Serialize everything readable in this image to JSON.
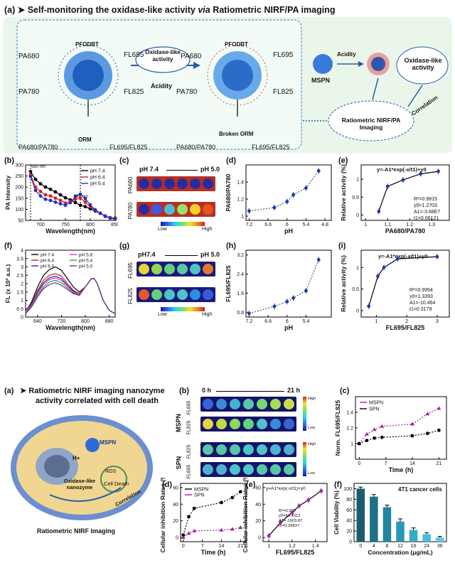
{
  "top": {
    "title_prefix": "(a) ➤ Self-monitoring the oxidase-like activity ",
    "title_italic": "via",
    "title_suffix": " Ratiometric NIRF/PA imaging",
    "scheme": {
      "pa680": "PA680",
      "pa780": "PA780",
      "fl695": "FL695",
      "fl825": "FL825",
      "pfodbt": "PFODBT",
      "oxidase_like": "Oxidase-like activity",
      "acidity": "Acidity",
      "orm": "ORM",
      "broken_orm": "Broken ORM",
      "ratio_left_pa": "PA680/PA780",
      "ratio_left_fl": "FL695/FL825",
      "ratio_mid_pa": "PA680/PA780",
      "ratio_mid_fl": "FL695/FL825",
      "mspn": "MSPN",
      "acidity2": "Acidity",
      "oxidase_like2": "Oxidase-like activity",
      "correlation": "Correlation",
      "imaging": "Ratiometric NIRF/PA Imaging"
    },
    "b": {
      "label": "(b)",
      "annot_680": "680 nm",
      "annot_780": "780 nm",
      "legend": [
        "pH 7.4",
        "pH 6.4",
        "pH 5.4"
      ]
    },
    "c": {
      "label": "(c)",
      "ph_left": "pH 7.4",
      "ph_right": "pH 5.0",
      "row1": "PA680",
      "row2": "PA780",
      "low": "Low",
      "high": "High"
    },
    "d": {
      "label": "(d)"
    },
    "e": {
      "label": "(e)",
      "equation": "y=-A1*exp(-x/t1)+y0",
      "stats": [
        "R²=0.9815",
        "y0=1.2703",
        "A1=-3.68E7",
        "t1=0.06121"
      ]
    },
    "f": {
      "label": "(f)",
      "legend": [
        "pH 7.4",
        "pH 6.4",
        "pH 6.0",
        "pH 5.8",
        "pH 5.4",
        "pH 5.0"
      ]
    },
    "g": {
      "label": "(g)",
      "ph_left": "pH7.4",
      "ph_right": "pH 5.0",
      "row1": "FL695",
      "row2": "FL825",
      "low": "Low",
      "high": "High"
    },
    "h": {
      "label": "(h)"
    },
    "i": {
      "label": "(i)",
      "equation": "y=-A1*exp(-x/t1)+y0",
      "stats": [
        "R²=0.9954",
        "y0=1.3393",
        "A1=-10.464",
        "t1=0.3179"
      ]
    }
  },
  "bottom": {
    "a": {
      "label": "(a)",
      "title1": "➤ Ratiometric NIRF imaging nanozyme",
      "title2": "activity correlated with cell death",
      "mspn": "MSPN",
      "hplus": "H+",
      "ros": "ROS",
      "oxidase": "Oxidase-like nanozyme",
      "cell_death": "Cell Death",
      "correlation": "Correlation",
      "caption": "Ratiometric NIRF Imaging"
    },
    "b": {
      "label": "(b)",
      "t0": "0 h",
      "t21": "21 h",
      "mspn": "MSPN",
      "spn": "SPN",
      "fl695": "FL695",
      "fl825": "FL825",
      "high": "High",
      "low": "Low"
    },
    "c": {
      "label": "(c)"
    },
    "d": {
      "label": "(d)"
    },
    "e": {
      "label": "(e)",
      "equation": "y=A1*exp(-x/t1)+y0",
      "stats": [
        "R²=0.979",
        "y0=83.4312",
        "A1=-1603.87",
        "t1=0.39837"
      ]
    },
    "f": {
      "label": "(f)",
      "annotation": "4T1 cancer cells"
    }
  },
  "chart_data": [
    {
      "id": "top-b",
      "type": "line",
      "xlabel": "Wavelength(nm)",
      "ylabel": "PA Intensity",
      "xlim": [
        670,
        850
      ],
      "ylim": [
        50,
        300
      ],
      "xticks": [
        700,
        750,
        800,
        850
      ],
      "yticks": [
        50,
        100,
        150,
        200,
        250,
        300
      ],
      "x": [
        680,
        690,
        700,
        710,
        720,
        730,
        740,
        750,
        760,
        770,
        780,
        790,
        800,
        810,
        820,
        830,
        840,
        850
      ],
      "series": [
        {
          "name": "pH 7.4",
          "values": [
            270,
            235,
            215,
            200,
            190,
            178,
            165,
            152,
            142,
            130,
            118,
            112,
            102,
            92,
            82,
            70,
            62,
            60
          ]
        },
        {
          "name": "pH 6.4",
          "values": [
            255,
            200,
            180,
            165,
            160,
            150,
            140,
            128,
            135,
            145,
            150,
            132,
            112,
            95,
            82,
            70,
            62,
            58
          ]
        },
        {
          "name": "pH 5.4",
          "values": [
            248,
            185,
            160,
            145,
            140,
            132,
            125,
            118,
            130,
            158,
            168,
            148,
            120,
            98,
            82,
            68,
            60,
            55
          ]
        }
      ]
    },
    {
      "id": "top-d",
      "type": "scatter",
      "xlabel": "pH",
      "ylabel": "PA680/PA780",
      "xlim": [
        7.3,
        4.6
      ],
      "ylim": [
        0.95,
        1.6
      ],
      "xticks": [
        7.2,
        6.6,
        6.0,
        5.4,
        4.8
      ],
      "yticks": [
        1.0,
        1.2,
        1.4
      ],
      "x": [
        7.2,
        6.4,
        6.0,
        5.8,
        5.4,
        5.0
      ],
      "values": [
        1.06,
        1.1,
        1.17,
        1.25,
        1.33,
        1.53
      ]
    },
    {
      "id": "top-e",
      "type": "scatter",
      "xlabel": "PA680/PA780",
      "ylabel": "Relative activity (%)",
      "xlim": [
        0.98,
        1.38
      ],
      "ylim": [
        -0.15,
        1.4
      ],
      "xticks": [
        1.0,
        1.1,
        1.2,
        1.3
      ],
      "yticks": [
        0.0,
        0.5,
        1.0
      ],
      "x": [
        1.06,
        1.1,
        1.17,
        1.25,
        1.33
      ],
      "values": [
        0.1,
        0.8,
        0.98,
        1.15,
        1.22
      ]
    },
    {
      "id": "top-f",
      "type": "line",
      "xlabel": "Wavelength(nm)",
      "ylabel": "FL (x 10³ a.u.)",
      "xlim": [
        600,
        900
      ],
      "ylim": [
        0,
        4
      ],
      "xticks": [
        640,
        720,
        800,
        880
      ],
      "yticks": [
        0,
        0.5,
        1,
        1.5,
        2,
        2.5,
        3,
        3.5,
        4
      ],
      "x": [
        600,
        620,
        640,
        660,
        680,
        700,
        720,
        740,
        760,
        780,
        800,
        820,
        830,
        840,
        860,
        880,
        900
      ],
      "series": [
        {
          "name": "pH 7.4",
          "values": [
            0.3,
            0.9,
            1.8,
            2.5,
            2.85,
            3.0,
            2.8,
            2.3,
            1.8,
            1.5,
            1.8,
            2.3,
            2.3,
            2.0,
            1.0,
            0.4,
            0.2
          ]
        },
        {
          "name": "pH 6.4",
          "values": [
            0.3,
            0.8,
            1.6,
            2.2,
            2.5,
            2.6,
            2.45,
            2.0,
            1.6,
            1.4,
            1.8,
            2.3,
            2.3,
            2.0,
            1.0,
            0.4,
            0.2
          ]
        },
        {
          "name": "pH 6.0",
          "values": [
            0.3,
            0.75,
            1.5,
            2.05,
            2.35,
            2.45,
            2.3,
            1.9,
            1.55,
            1.35,
            1.8,
            2.3,
            2.3,
            2.0,
            1.0,
            0.4,
            0.2
          ]
        },
        {
          "name": "pH 5.8",
          "values": [
            0.3,
            0.7,
            1.4,
            1.95,
            2.25,
            2.35,
            2.2,
            1.85,
            1.5,
            1.35,
            1.8,
            2.3,
            2.3,
            2.0,
            1.0,
            0.4,
            0.2
          ]
        },
        {
          "name": "pH 5.4",
          "values": [
            0.25,
            0.65,
            1.3,
            1.8,
            2.1,
            2.2,
            2.05,
            1.75,
            1.45,
            1.3,
            1.8,
            2.3,
            2.3,
            2.0,
            1.0,
            0.4,
            0.2
          ]
        },
        {
          "name": "pH 5.0",
          "values": [
            0.2,
            0.6,
            1.2,
            1.7,
            1.95,
            2.05,
            1.9,
            1.65,
            1.4,
            1.3,
            1.8,
            2.3,
            2.3,
            2.0,
            1.0,
            0.4,
            0.2
          ]
        }
      ]
    },
    {
      "id": "top-h",
      "type": "scatter",
      "xlabel": "pH",
      "ylabel": "FL695/FL825",
      "xlim": [
        7.3,
        4.6
      ],
      "ylim": [
        0.6,
        3.4
      ],
      "xticks": [
        7.2,
        6.6,
        6.0,
        5.4
      ],
      "yticks": [
        0.8,
        1.6,
        2.4,
        3.2
      ],
      "x": [
        7.2,
        6.4,
        6.0,
        5.8,
        5.4,
        5.0
      ],
      "values": [
        0.75,
        1.05,
        1.25,
        1.4,
        1.7,
        3.0
      ]
    },
    {
      "id": "top-i",
      "type": "scatter",
      "xlabel": "FL695/FL825",
      "ylabel": "Relative activity (%)",
      "xlim": [
        0.5,
        3.4
      ],
      "ylim": [
        -0.15,
        1.4
      ],
      "xticks": [
        1,
        2,
        3
      ],
      "yticks": [
        0.0,
        0.5,
        1.0
      ],
      "x": [
        0.75,
        1.05,
        1.25,
        1.7,
        3.0
      ],
      "values": [
        0.1,
        0.8,
        1.0,
        1.2,
        1.25
      ]
    },
    {
      "id": "bottom-c",
      "type": "line",
      "xlabel": "Time (h)",
      "ylabel": "Norm. FL695/FL825",
      "xlim": [
        -1,
        23
      ],
      "ylim": [
        0.8,
        1.6
      ],
      "xticks": [
        0,
        7,
        14,
        21
      ],
      "yticks": [
        1.0,
        1.2,
        1.4
      ],
      "x": [
        0,
        2,
        4,
        6,
        14,
        18,
        21
      ],
      "series": [
        {
          "name": "MSPN",
          "values": [
            1.0,
            1.12,
            1.18,
            1.22,
            1.25,
            1.38,
            1.45
          ]
        },
        {
          "name": "SPN",
          "values": [
            1.0,
            1.04,
            1.07,
            1.08,
            1.1,
            1.13,
            1.17
          ]
        }
      ]
    },
    {
      "id": "bottom-d",
      "type": "line",
      "xlabel": "Time (h)",
      "ylabel": "Cellular inhibition Rates (%)",
      "xlim": [
        -1,
        23
      ],
      "ylim": [
        -5,
        65
      ],
      "xticks": [
        0,
        7,
        14,
        21
      ],
      "yticks": [
        0,
        20,
        40,
        60
      ],
      "x": [
        0,
        2,
        4,
        14,
        18,
        21
      ],
      "series": [
        {
          "name": "MSPN",
          "values": [
            3,
            25,
            35,
            42,
            48,
            55
          ]
        },
        {
          "name": "SPN",
          "values": [
            0,
            5,
            8,
            9,
            10,
            12
          ]
        }
      ]
    },
    {
      "id": "bottom-e",
      "type": "scatter",
      "xlabel": "FL695/FL825",
      "ylabel": "Cellular inhibition Rates (%)",
      "xlim": [
        0.95,
        1.5
      ],
      "ylim": [
        -5,
        65
      ],
      "xticks": [
        1.0,
        1.2,
        1.4
      ],
      "yticks": [
        0,
        20,
        40,
        60
      ],
      "x": [
        1.0,
        1.1,
        1.2,
        1.26,
        1.34,
        1.45
      ],
      "values": [
        2,
        18,
        30,
        38,
        45,
        56
      ]
    },
    {
      "id": "bottom-f",
      "type": "bar",
      "xlabel": "Concentration (μg/mL)",
      "ylabel": "Cell Viability (%)",
      "categories": [
        "0",
        "4",
        "8",
        "12",
        "16",
        "24",
        "36"
      ],
      "values": [
        100,
        85,
        65,
        38,
        22,
        14,
        8
      ],
      "errors": [
        3,
        4,
        4,
        5,
        4,
        3,
        2
      ],
      "ylim": [
        0,
        110
      ],
      "yticks": [
        0,
        20,
        40,
        60,
        80,
        100
      ]
    }
  ]
}
